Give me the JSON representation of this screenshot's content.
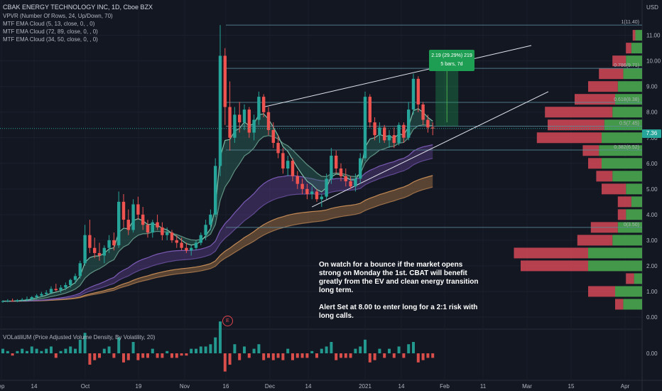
{
  "header": {
    "title": "CBAK ENERGY TECHNOLOGY INC, 1D, Cboe BZX",
    "indicators": [
      "VPVR (Number Of Rows, 24, Up/Down, 70)",
      "MTF EMA Cloud (5, 13, close, 0, , 0)",
      "MTF EMA Cloud (72, 89, close, 0, , 0)",
      "MTF EMA Cloud (34, 50, close, 0, , 0)"
    ]
  },
  "price_scale": {
    "currency": "USD",
    "current_price": "7.36"
  },
  "annotation": {
    "paragraph1": "On watch for a bounce if the market opens strong on Monday the 1st. CBAT will benefit greatly from the EV and clean energy transition long term.",
    "paragraph2": "Alert Set at 8.00 to enter long for a  2:1 risk with long calls."
  },
  "measure_tooltip": {
    "line1": "2.19 (29.29%) 219",
    "line2": "5 bars, 7d"
  },
  "earnings_marker": "E",
  "volume_pane": {
    "title": "VOLatiliUM (Price Adjusted Volume Density, By Volatility, 20)",
    "scale_label": "0.00"
  },
  "colors": {
    "background": "#131722",
    "up": "#26a69a",
    "down": "#ef5350",
    "fib": "#b2b5be",
    "vp_up": "#4caf50",
    "vp_down": "#e04b5a"
  },
  "chart_data": {
    "type": "candlestick",
    "ylim": [
      0,
      11.6
    ],
    "y_ticks": [
      "0.00",
      "1.00",
      "2.00",
      "3.00",
      "4.00",
      "5.00",
      "6.00",
      "7.00",
      "8.00",
      "9.00",
      "10.00",
      "11.00"
    ],
    "x_ticks": [
      "ep",
      "14",
      "Oct",
      "19",
      "Nov",
      "16",
      "Dec",
      "14",
      "2021",
      "14",
      "Feb",
      "11",
      "Mar",
      "15",
      "Apr"
    ],
    "fib_levels": [
      {
        "label": "1(11.40)",
        "value": 11.4
      },
      {
        "label": "0.786(9.71)",
        "value": 9.71
      },
      {
        "label": "0.618(8.38)",
        "value": 8.38
      },
      {
        "label": "0.5(7.45)",
        "value": 7.45
      },
      {
        "label": "0.382(6.52)",
        "value": 6.52
      },
      {
        "label": "0(3.50)",
        "value": 3.5
      }
    ],
    "volume_profile": [
      {
        "price": 11.0,
        "up": 0.05,
        "down": 0.02
      },
      {
        "price": 10.5,
        "up": 0.08,
        "down": 0.04
      },
      {
        "price": 10.0,
        "up": 0.12,
        "down": 0.1
      },
      {
        "price": 9.5,
        "up": 0.14,
        "down": 0.18
      },
      {
        "price": 9.0,
        "up": 0.18,
        "down": 0.22
      },
      {
        "price": 8.5,
        "up": 0.2,
        "down": 0.3
      },
      {
        "price": 8.0,
        "up": 0.22,
        "down": 0.5
      },
      {
        "price": 7.5,
        "up": 0.28,
        "down": 0.42
      },
      {
        "price": 7.0,
        "up": 0.3,
        "down": 0.48
      },
      {
        "price": 6.5,
        "up": 0.32,
        "down": 0.12
      },
      {
        "price": 6.0,
        "up": 0.3,
        "down": 0.1
      },
      {
        "price": 5.5,
        "up": 0.22,
        "down": 0.12
      },
      {
        "price": 5.0,
        "up": 0.12,
        "down": 0.18
      },
      {
        "price": 4.5,
        "up": 0.08,
        "down": 0.1
      },
      {
        "price": 4.0,
        "up": 0.12,
        "down": 0.06
      },
      {
        "price": 3.5,
        "up": 0.18,
        "down": 0.2
      },
      {
        "price": 3.0,
        "up": 0.22,
        "down": 0.26
      },
      {
        "price": 2.5,
        "up": 0.4,
        "down": 0.55
      },
      {
        "price": 2.0,
        "up": 0.4,
        "down": 0.5
      },
      {
        "price": 1.5,
        "up": 0.06,
        "down": 0.06
      },
      {
        "price": 1.0,
        "up": 0.2,
        "down": 0.2
      },
      {
        "price": 0.5,
        "up": 0.14,
        "down": 0.06
      }
    ],
    "candles": [
      {
        "o": 0.6,
        "h": 0.66,
        "l": 0.56,
        "c": 0.62
      },
      {
        "o": 0.62,
        "h": 0.7,
        "l": 0.58,
        "c": 0.64
      },
      {
        "o": 0.64,
        "h": 0.72,
        "l": 0.6,
        "c": 0.62
      },
      {
        "o": 0.62,
        "h": 0.7,
        "l": 0.58,
        "c": 0.66
      },
      {
        "o": 0.66,
        "h": 0.74,
        "l": 0.62,
        "c": 0.68
      },
      {
        "o": 0.68,
        "h": 0.8,
        "l": 0.62,
        "c": 0.7
      },
      {
        "o": 0.7,
        "h": 0.82,
        "l": 0.64,
        "c": 0.78
      },
      {
        "o": 0.78,
        "h": 0.9,
        "l": 0.7,
        "c": 0.84
      },
      {
        "o": 0.84,
        "h": 0.98,
        "l": 0.78,
        "c": 0.9
      },
      {
        "o": 0.9,
        "h": 1.05,
        "l": 0.84,
        "c": 0.95
      },
      {
        "o": 0.95,
        "h": 1.2,
        "l": 0.9,
        "c": 1.1
      },
      {
        "o": 1.1,
        "h": 1.3,
        "l": 1.0,
        "c": 1.05
      },
      {
        "o": 1.05,
        "h": 1.25,
        "l": 0.95,
        "c": 1.15
      },
      {
        "o": 1.15,
        "h": 1.35,
        "l": 1.05,
        "c": 1.25
      },
      {
        "o": 1.25,
        "h": 1.5,
        "l": 1.15,
        "c": 1.45
      },
      {
        "o": 1.45,
        "h": 1.7,
        "l": 1.3,
        "c": 1.6
      },
      {
        "o": 1.6,
        "h": 2.2,
        "l": 1.5,
        "c": 2.1
      },
      {
        "o": 2.1,
        "h": 3.6,
        "l": 2.0,
        "c": 3.2
      },
      {
        "o": 3.2,
        "h": 3.8,
        "l": 2.5,
        "c": 2.7
      },
      {
        "o": 2.7,
        "h": 3.1,
        "l": 2.3,
        "c": 2.5
      },
      {
        "o": 2.5,
        "h": 2.9,
        "l": 2.2,
        "c": 2.4
      },
      {
        "o": 2.4,
        "h": 2.8,
        "l": 2.1,
        "c": 2.7
      },
      {
        "o": 2.7,
        "h": 3.2,
        "l": 2.5,
        "c": 3.0
      },
      {
        "o": 3.0,
        "h": 3.3,
        "l": 2.6,
        "c": 2.8
      },
      {
        "o": 2.8,
        "h": 4.9,
        "l": 2.7,
        "c": 4.5
      },
      {
        "o": 4.5,
        "h": 4.8,
        "l": 3.5,
        "c": 3.8
      },
      {
        "o": 3.8,
        "h": 4.2,
        "l": 3.2,
        "c": 3.4
      },
      {
        "o": 3.4,
        "h": 4.6,
        "l": 3.3,
        "c": 4.4
      },
      {
        "o": 4.4,
        "h": 4.7,
        "l": 3.8,
        "c": 4.0
      },
      {
        "o": 4.0,
        "h": 4.3,
        "l": 3.4,
        "c": 3.6
      },
      {
        "o": 3.6,
        "h": 3.8,
        "l": 3.1,
        "c": 3.3
      },
      {
        "o": 3.3,
        "h": 3.8,
        "l": 3.1,
        "c": 3.7
      },
      {
        "o": 3.7,
        "h": 4.0,
        "l": 3.4,
        "c": 3.5
      },
      {
        "o": 3.5,
        "h": 3.7,
        "l": 3.0,
        "c": 3.2
      },
      {
        "o": 3.2,
        "h": 3.5,
        "l": 3.0,
        "c": 3.3
      },
      {
        "o": 3.3,
        "h": 3.4,
        "l": 2.9,
        "c": 3.0
      },
      {
        "o": 3.0,
        "h": 3.2,
        "l": 2.7,
        "c": 2.9
      },
      {
        "o": 2.9,
        "h": 3.1,
        "l": 2.6,
        "c": 2.7
      },
      {
        "o": 2.7,
        "h": 2.9,
        "l": 2.5,
        "c": 2.6
      },
      {
        "o": 2.6,
        "h": 2.8,
        "l": 2.4,
        "c": 2.7
      },
      {
        "o": 2.7,
        "h": 3.0,
        "l": 2.6,
        "c": 2.9
      },
      {
        "o": 2.9,
        "h": 3.3,
        "l": 2.8,
        "c": 3.2
      },
      {
        "o": 3.2,
        "h": 3.8,
        "l": 3.0,
        "c": 3.6
      },
      {
        "o": 3.6,
        "h": 4.2,
        "l": 3.4,
        "c": 4.0
      },
      {
        "o": 4.0,
        "h": 6.2,
        "l": 3.9,
        "c": 5.9
      },
      {
        "o": 5.9,
        "h": 11.4,
        "l": 5.5,
        "c": 10.2
      },
      {
        "o": 10.2,
        "h": 10.5,
        "l": 7.5,
        "c": 8.2
      },
      {
        "o": 8.2,
        "h": 9.2,
        "l": 6.5,
        "c": 7.0
      },
      {
        "o": 7.0,
        "h": 8.2,
        "l": 6.8,
        "c": 7.9
      },
      {
        "o": 7.9,
        "h": 8.4,
        "l": 7.2,
        "c": 7.6
      },
      {
        "o": 7.6,
        "h": 8.3,
        "l": 7.3,
        "c": 8.1
      },
      {
        "o": 8.1,
        "h": 8.2,
        "l": 7.0,
        "c": 7.2
      },
      {
        "o": 7.2,
        "h": 7.9,
        "l": 6.9,
        "c": 7.7
      },
      {
        "o": 7.7,
        "h": 8.8,
        "l": 7.5,
        "c": 8.6
      },
      {
        "o": 8.6,
        "h": 8.7,
        "l": 7.8,
        "c": 8.0
      },
      {
        "o": 8.0,
        "h": 8.2,
        "l": 7.1,
        "c": 7.3
      },
      {
        "o": 7.3,
        "h": 7.6,
        "l": 6.6,
        "c": 6.8
      },
      {
        "o": 6.8,
        "h": 7.1,
        "l": 6.2,
        "c": 6.4
      },
      {
        "o": 6.4,
        "h": 6.6,
        "l": 5.6,
        "c": 5.8
      },
      {
        "o": 5.8,
        "h": 6.3,
        "l": 5.5,
        "c": 6.1
      },
      {
        "o": 6.1,
        "h": 6.2,
        "l": 5.3,
        "c": 5.5
      },
      {
        "o": 5.5,
        "h": 5.7,
        "l": 5.0,
        "c": 5.2
      },
      {
        "o": 5.2,
        "h": 5.4,
        "l": 4.8,
        "c": 5.0
      },
      {
        "o": 5.0,
        "h": 5.2,
        "l": 4.6,
        "c": 4.8
      },
      {
        "o": 4.8,
        "h": 5.1,
        "l": 4.6,
        "c": 4.9
      },
      {
        "o": 4.9,
        "h": 5.0,
        "l": 4.5,
        "c": 4.6
      },
      {
        "o": 4.6,
        "h": 4.8,
        "l": 4.3,
        "c": 4.7
      },
      {
        "o": 4.7,
        "h": 5.6,
        "l": 4.6,
        "c": 5.4
      },
      {
        "o": 5.4,
        "h": 6.6,
        "l": 5.2,
        "c": 6.3
      },
      {
        "o": 6.3,
        "h": 6.5,
        "l": 5.6,
        "c": 5.8
      },
      {
        "o": 5.8,
        "h": 6.0,
        "l": 5.3,
        "c": 5.5
      },
      {
        "o": 5.5,
        "h": 5.8,
        "l": 5.1,
        "c": 5.3
      },
      {
        "o": 5.3,
        "h": 5.5,
        "l": 5.0,
        "c": 5.1
      },
      {
        "o": 5.1,
        "h": 5.6,
        "l": 4.9,
        "c": 5.4
      },
      {
        "o": 5.4,
        "h": 6.4,
        "l": 5.2,
        "c": 6.2
      },
      {
        "o": 6.2,
        "h": 8.8,
        "l": 6.1,
        "c": 8.6
      },
      {
        "o": 8.6,
        "h": 8.7,
        "l": 7.4,
        "c": 7.6
      },
      {
        "o": 7.6,
        "h": 7.8,
        "l": 6.9,
        "c": 7.1
      },
      {
        "o": 7.1,
        "h": 7.6,
        "l": 6.8,
        "c": 7.4
      },
      {
        "o": 7.4,
        "h": 7.5,
        "l": 6.8,
        "c": 6.9
      },
      {
        "o": 6.9,
        "h": 7.3,
        "l": 6.6,
        "c": 7.1
      },
      {
        "o": 7.1,
        "h": 7.4,
        "l": 6.6,
        "c": 6.8
      },
      {
        "o": 6.8,
        "h": 7.6,
        "l": 6.7,
        "c": 7.5
      },
      {
        "o": 7.5,
        "h": 7.6,
        "l": 6.8,
        "c": 7.0
      },
      {
        "o": 7.0,
        "h": 8.4,
        "l": 6.9,
        "c": 8.1
      },
      {
        "o": 8.1,
        "h": 9.5,
        "l": 7.9,
        "c": 9.3
      },
      {
        "o": 9.3,
        "h": 9.4,
        "l": 8.0,
        "c": 8.3
      },
      {
        "o": 8.3,
        "h": 8.4,
        "l": 7.5,
        "c": 7.7
      },
      {
        "o": 7.7,
        "h": 7.9,
        "l": 7.2,
        "c": 7.4
      },
      {
        "o": 7.4,
        "h": 7.6,
        "l": 7.1,
        "c": 7.36
      }
    ],
    "volume": [
      2,
      1,
      1,
      1,
      2,
      1,
      3,
      2,
      1,
      2,
      3,
      2,
      1,
      2,
      3,
      2,
      6,
      9,
      5,
      3,
      2,
      2,
      3,
      2,
      7,
      4,
      3,
      5,
      3,
      2,
      2,
      2,
      2,
      2,
      1,
      2,
      2,
      1,
      1,
      2,
      2,
      3,
      3,
      4,
      7,
      14,
      8,
      5,
      4,
      3,
      3,
      2,
      2,
      4,
      3,
      2,
      3,
      2,
      3,
      2,
      3,
      2,
      2,
      2,
      1,
      2,
      2,
      3,
      5,
      3,
      2,
      2,
      2,
      2,
      3,
      6,
      4,
      3,
      2,
      2,
      2,
      2,
      3,
      2,
      4,
      5,
      4,
      3,
      2,
      2
    ]
  }
}
